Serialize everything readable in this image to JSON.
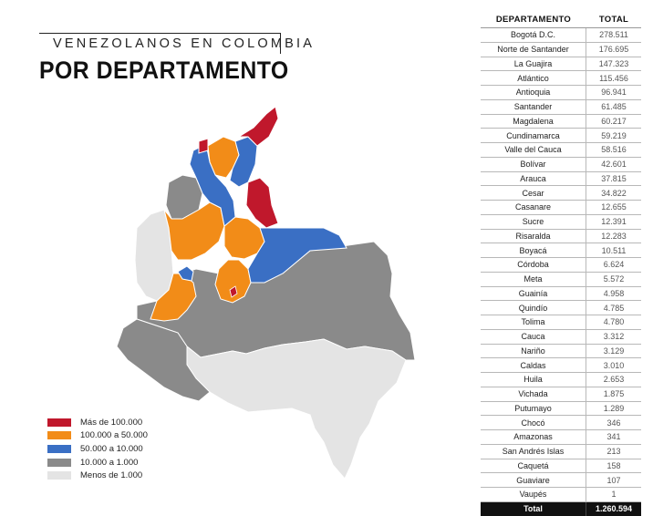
{
  "title": {
    "top": "VENEZOLANOS EN COLOMBIA",
    "main": "POR DEPARTAMENTO"
  },
  "colors": {
    "more_100000": "#c0182c",
    "c100000_50000": "#f28c18",
    "c50000_10000": "#3a6fc4",
    "c10000_1000": "#8a8a8a",
    "less_1000": "#e4e4e4"
  },
  "legend": [
    {
      "label": "Más de 100.000",
      "color": "#c0182c"
    },
    {
      "label": "100.000 a 50.000",
      "color": "#f28c18"
    },
    {
      "label": "50.000 a 10.000",
      "color": "#3a6fc4"
    },
    {
      "label": "10.000 a 1.000",
      "color": "#8a8a8a"
    },
    {
      "label": "Menos de 1.000",
      "color": "#e4e4e4"
    }
  ],
  "chart_data": {
    "type": "table",
    "columns": [
      "DEPARTAMENTO",
      "TOTAL"
    ],
    "rows": [
      [
        "Bogotá D.C.",
        "278.511"
      ],
      [
        "Norte de Santander",
        "176.695"
      ],
      [
        "La Guajira",
        "147.323"
      ],
      [
        "Atlántico",
        "115.456"
      ],
      [
        "Antioquia",
        "96.941"
      ],
      [
        "Santander",
        "61.485"
      ],
      [
        "Magdalena",
        "60.217"
      ],
      [
        "Cundinamarca",
        "59.219"
      ],
      [
        "Valle del Cauca",
        "58.516"
      ],
      [
        "Bolívar",
        "42.601"
      ],
      [
        "Arauca",
        "37.815"
      ],
      [
        "Cesar",
        "34.822"
      ],
      [
        "Casanare",
        "12.655"
      ],
      [
        "Sucre",
        "12.391"
      ],
      [
        "Risaralda",
        "12.283"
      ],
      [
        "Boyacá",
        "10.511"
      ],
      [
        "Córdoba",
        "6.624"
      ],
      [
        "Meta",
        "5.572"
      ],
      [
        "Guainía",
        "4.958"
      ],
      [
        "Quindío",
        "4.785"
      ],
      [
        "Tolima",
        "4.780"
      ],
      [
        "Cauca",
        "3.312"
      ],
      [
        "Nariño",
        "3.129"
      ],
      [
        "Caldas",
        "3.010"
      ],
      [
        "Huila",
        "2.653"
      ],
      [
        "Vichada",
        "1.875"
      ],
      [
        "Putumayo",
        "1.289"
      ],
      [
        "Chocó",
        "346"
      ],
      [
        "Amazonas",
        "341"
      ],
      [
        "San Andrés Islas",
        "213"
      ],
      [
        "Caquetá",
        "158"
      ],
      [
        "Guaviare",
        "107"
      ],
      [
        "Vaupés",
        "1"
      ]
    ],
    "total_label": "Total",
    "total_value": "1.260.594"
  }
}
